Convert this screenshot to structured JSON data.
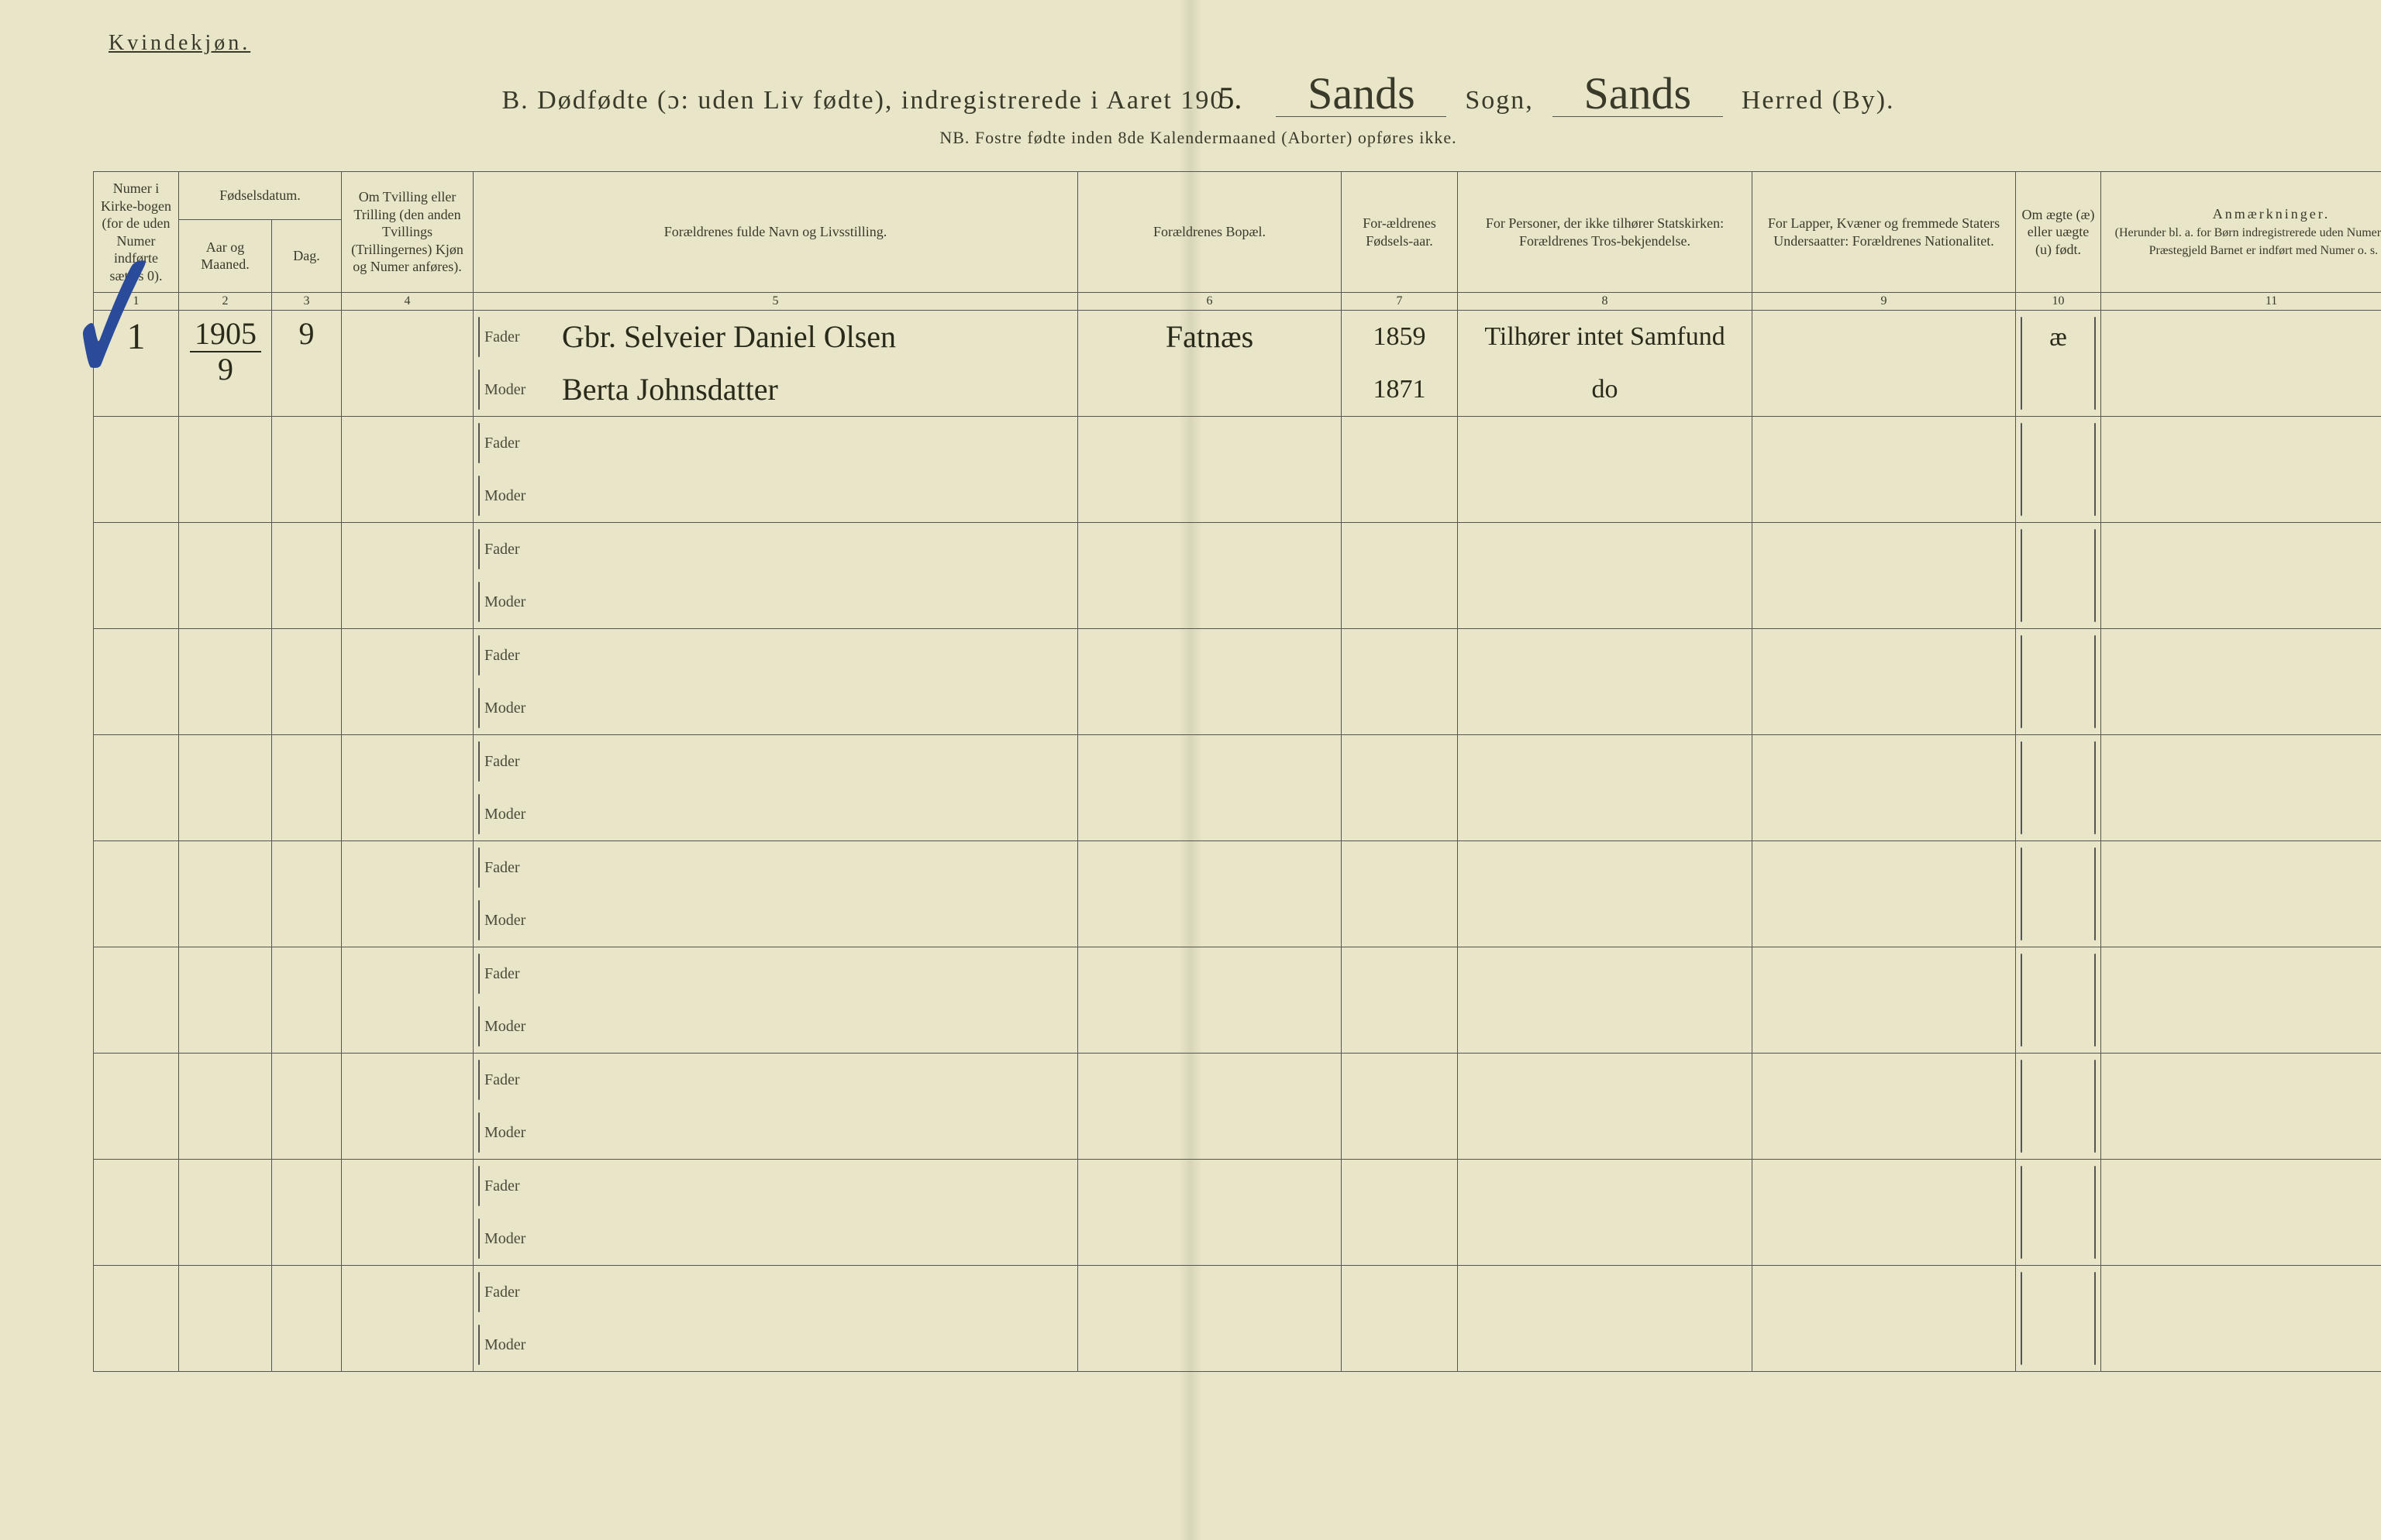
{
  "topLabel": "Kvindekjøn.",
  "title": {
    "prefix": "B.  Dødfødte (ɔ: uden Liv fødte), indregistrerede i Aaret 190",
    "yearSuffixHand": "5.",
    "sognHand": "Sands",
    "sognLabel": "Sogn,",
    "herredHand": "Sands",
    "herredLabel": "Herred (By)."
  },
  "subtitle": "NB.  Fostre fødte inden 8de Kalendermaaned (Aborter) opføres ikke.",
  "columns": {
    "c1": "Numer i Kirke-bogen (for de uden Numer indførte sættes 0).",
    "c2a": "Fødselsdatum.",
    "c2b_aar": "Aar og Maaned.",
    "c2b_dag": "Dag.",
    "c4": "Om Tvilling eller Trilling (den anden Tvillings (Trillingernes) Kjøn og Numer anføres).",
    "c5": "Forældrenes fulde Navn og Livsstilling.",
    "c6": "Forældrenes Bopæl.",
    "c7": "For-ældrenes Fødsels-aar.",
    "c8": "For Personer, der ikke tilhører Statskirken: Forældrenes Tros-bekjendelse.",
    "c9": "For Lapper, Kvæner og fremmede Staters Undersaatter: Forældrenes Nationalitet.",
    "c10": "Om ægte (æ) eller uægte (u) født.",
    "c11": "Anmærkninger.",
    "c11b": "(Herunder bl. a. for Børn indregistrerede uden Numer, i hvilket Præstegjeld Barnet er indført med Numer o. s. v.)"
  },
  "colNums": [
    "1",
    "2",
    "3",
    "4",
    "5",
    "6",
    "7",
    "8",
    "9",
    "10",
    "11"
  ],
  "roleLabels": {
    "fader": "Fader",
    "moder": "Moder"
  },
  "entry": {
    "num": "1",
    "yearTop": "1905",
    "yearBot": "9",
    "day": "9",
    "fader": "Gbr. Selveier Daniel Olsen",
    "moder": "Berta Johnsdatter",
    "bopael": "Fatnæs",
    "faderAar": "1859",
    "moderAar": "1871",
    "faderTros": "Tilhører intet Samfund",
    "moderTros": "do",
    "aegte": "æ"
  },
  "layout": {
    "widths": {
      "c1": 110,
      "c2": 120,
      "c3": 90,
      "c4": 170,
      "c5": 780,
      "c6": 340,
      "c7": 150,
      "c8": 380,
      "c9": 340,
      "c10": 110,
      "c11": 440
    },
    "emptyRows": 9
  },
  "colors": {
    "paper": "#e8e5c8",
    "ink": "#3a3a2a",
    "line": "#555",
    "checkmark": "#2a4a9a"
  }
}
